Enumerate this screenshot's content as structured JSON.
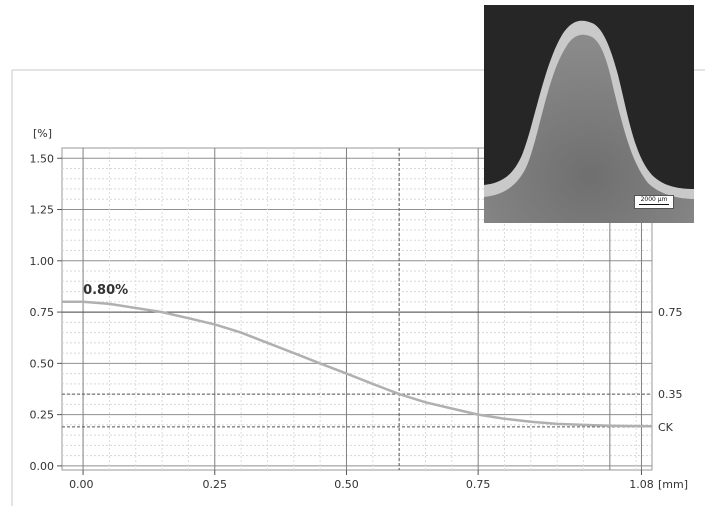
{
  "chart_data": {
    "type": "line",
    "title": "",
    "xlabel": "",
    "ylabel": "",
    "x_unit": "[mm]",
    "y_unit": "[%]",
    "xlim": [
      -0.04,
      1.08
    ],
    "ylim": [
      -0.02,
      1.55
    ],
    "x_ticks": [
      0.0,
      0.25,
      0.5,
      0.75,
      1.08
    ],
    "x_tick_labels": [
      "0.00",
      "0.25",
      "0.50",
      "0.75",
      "1.08"
    ],
    "y_ticks": [
      0.0,
      0.25,
      0.5,
      0.75,
      1.0,
      1.25,
      1.5
    ],
    "y_tick_labels": [
      "0.00",
      "0.25",
      "0.50",
      "0.75",
      "1.00",
      "1.25",
      "1.50"
    ],
    "grid": true,
    "series": [
      {
        "name": "",
        "color": "#b0b0b0",
        "x": [
          -0.04,
          0.0,
          0.05,
          0.1,
          0.15,
          0.2,
          0.25,
          0.3,
          0.35,
          0.4,
          0.45,
          0.5,
          0.55,
          0.6,
          0.65,
          0.7,
          0.75,
          0.8,
          0.85,
          0.9,
          0.95,
          1.0,
          1.05,
          1.08
        ],
        "y": [
          0.8,
          0.8,
          0.79,
          0.77,
          0.75,
          0.72,
          0.69,
          0.65,
          0.6,
          0.55,
          0.5,
          0.45,
          0.4,
          0.35,
          0.31,
          0.28,
          0.25,
          0.23,
          0.215,
          0.205,
          0.2,
          0.196,
          0.194,
          0.193
        ]
      }
    ],
    "reference_lines": [
      {
        "axis": "y",
        "value": 0.75,
        "label": "0.75",
        "style": "solid"
      },
      {
        "axis": "y",
        "value": 0.35,
        "label": "0.35",
        "style": "dashed"
      },
      {
        "axis": "y",
        "value": 0.19,
        "label": "CK",
        "style": "dashed"
      },
      {
        "axis": "x",
        "value": 0.6,
        "label": "",
        "style": "dashed"
      }
    ],
    "annotations": [
      {
        "text": "0.80%",
        "x": 0.0,
        "y": 0.8
      }
    ]
  },
  "inset": {
    "scale_label": "2000 µm"
  }
}
